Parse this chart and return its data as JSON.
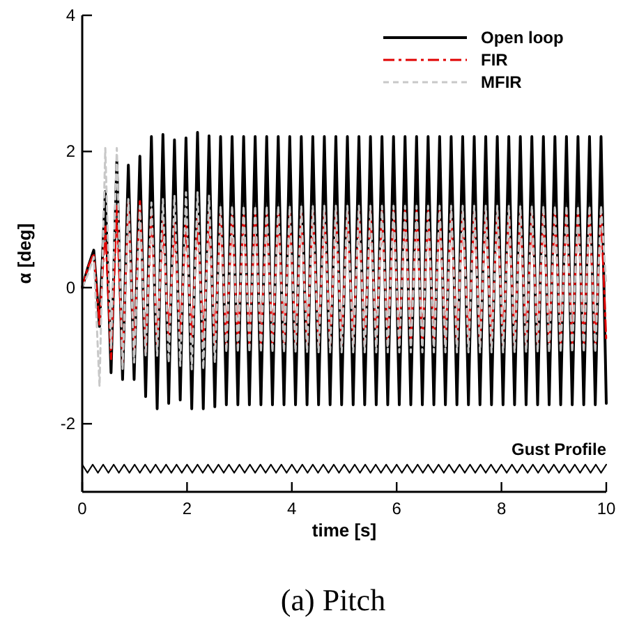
{
  "chart_data": {
    "type": "line",
    "title": "(a) Pitch",
    "xlabel": "time [s]",
    "ylabel": "α [deg]",
    "xlim": [
      0,
      10
    ],
    "ylim": [
      -3,
      4
    ],
    "xticks": [
      0,
      2,
      4,
      6,
      8,
      10
    ],
    "yticks": [
      -2,
      0,
      2,
      4
    ],
    "legend": "top right",
    "annotations": [
      "Gust Profile"
    ],
    "x": [
      0,
      0.11,
      0.22,
      0.33,
      0.44,
      0.55,
      0.66,
      0.77,
      0.88,
      0.99,
      1.1,
      1.21,
      1.32,
      1.43,
      1.54,
      1.65,
      1.76,
      1.87,
      1.98,
      2.09,
      2.2,
      2.31,
      2.42,
      2.53,
      2.64,
      2.75,
      2.86,
      2.97,
      3.08,
      3.19,
      3.3,
      3.41,
      3.52,
      3.63,
      3.74,
      3.85,
      3.96,
      4.07,
      4.18,
      4.29,
      4.4,
      4.51,
      4.62,
      4.73,
      4.84,
      4.95,
      5.06,
      5.17,
      5.28,
      5.39,
      5.5,
      5.61,
      5.72,
      5.83,
      5.94,
      6.05,
      6.16,
      6.27,
      6.38,
      6.49,
      6.6,
      6.71,
      6.82,
      6.93,
      7.04,
      7.15,
      7.26,
      7.37,
      7.48,
      7.59,
      7.7,
      7.81,
      7.92,
      8.03,
      8.14,
      8.25,
      8.36,
      8.47,
      8.58,
      8.69,
      8.8,
      8.91,
      9.02,
      9.13,
      9.24,
      9.35,
      9.46,
      9.57,
      9.68,
      9.79,
      9.9,
      10
    ],
    "series": [
      {
        "name": "Open loop",
        "color": "#000000",
        "line_style": "solid",
        "values": [
          0,
          0.3,
          0.55,
          -0.57,
          1.41,
          -1.25,
          1.85,
          -1.35,
          1.8,
          -1.35,
          1.93,
          -1.6,
          2.22,
          -1.78,
          2.25,
          -1.7,
          2.17,
          -1.65,
          2.2,
          -1.78,
          2.28,
          -1.78,
          2.23,
          -1.75,
          2.22,
          -1.72,
          2.22,
          -1.72,
          2.22,
          -1.72,
          2.22,
          -1.72,
          2.22,
          -1.72,
          2.22,
          -1.72,
          2.22,
          -1.72,
          2.22,
          -1.72,
          2.22,
          -1.72,
          2.22,
          -1.72,
          2.22,
          -1.72,
          2.22,
          -1.72,
          2.22,
          -1.72,
          2.22,
          -1.72,
          2.22,
          -1.72,
          2.22,
          -1.72,
          2.22,
          -1.72,
          2.22,
          -1.72,
          2.22,
          -1.72,
          2.22,
          -1.72,
          2.22,
          -1.72,
          2.22,
          -1.72,
          2.22,
          -1.72,
          2.22,
          -1.72,
          2.22,
          -1.72,
          2.22,
          -1.72,
          2.22,
          -1.72,
          2.22,
          -1.72,
          2.22,
          -1.72,
          2.22,
          -1.72,
          2.22,
          -1.72,
          2.22,
          -1.72,
          2.22,
          -1.72,
          2.22,
          -1.7
        ]
      },
      {
        "name": "FIR",
        "color": "#e00000",
        "line_style": "dashdot",
        "values": [
          0,
          0.3,
          0.5,
          -0.55,
          0.9,
          -1.05,
          1.2,
          -1.1,
          1.25,
          -0.95,
          1.3,
          -0.95,
          1.15,
          -0.85,
          1.0,
          -0.75,
          0.95,
          -0.75,
          1.0,
          -0.8,
          1.05,
          -0.8,
          1.1,
          -0.85,
          1.13,
          -0.84,
          1.13,
          -0.84,
          1.13,
          -0.84,
          1.13,
          -0.84,
          1.13,
          -0.84,
          1.13,
          -0.84,
          1.13,
          -0.84,
          1.13,
          -0.84,
          1.13,
          -0.84,
          1.13,
          -0.84,
          1.13,
          -0.84,
          1.13,
          -0.84,
          1.13,
          -0.84,
          1.13,
          -0.84,
          1.13,
          -0.84,
          1.13,
          -0.84,
          1.13,
          -0.84,
          1.13,
          -0.84,
          1.13,
          -0.84,
          1.13,
          -0.84,
          1.13,
          -0.84,
          1.13,
          -0.84,
          1.13,
          -0.84,
          1.13,
          -0.84,
          1.13,
          -0.84,
          1.13,
          -0.84,
          1.13,
          -0.84,
          1.13,
          -0.84,
          1.13,
          -0.84,
          1.13,
          -0.84,
          1.13,
          -0.84,
          1.13,
          -0.84,
          1.13,
          -0.84,
          1.13,
          -0.8
        ]
      },
      {
        "name": "MFIR",
        "color": "#c8c8c8",
        "line_style": "dashed",
        "values": [
          0,
          0.2,
          0.45,
          -1.45,
          2.05,
          -0.9,
          2.05,
          -1.2,
          1.3,
          -1.1,
          1.2,
          -1.0,
          1.25,
          -1.0,
          1.3,
          -1.1,
          1.35,
          -1.15,
          1.4,
          -1.2,
          1.4,
          -1.2,
          1.35,
          -1.1,
          1.2,
          -0.95,
          1.2,
          -0.95,
          1.2,
          -0.95,
          1.2,
          -0.95,
          1.2,
          -0.95,
          1.2,
          -0.95,
          1.2,
          -0.95,
          1.2,
          -0.95,
          1.2,
          -0.95,
          1.2,
          -0.95,
          1.2,
          -0.95,
          1.2,
          -0.95,
          1.2,
          -0.95,
          1.2,
          -0.95,
          1.2,
          -0.95,
          1.2,
          -0.95,
          1.2,
          -0.95,
          1.2,
          -0.95,
          1.2,
          -0.95,
          1.2,
          -0.95,
          1.2,
          -0.95,
          1.2,
          -0.95,
          1.2,
          -0.95,
          1.2,
          -0.95,
          1.2,
          -0.95,
          1.2,
          -0.95,
          1.2,
          -0.95,
          1.2,
          -0.95,
          1.2,
          -0.95,
          1.2,
          -0.95,
          1.2,
          -0.95,
          1.2,
          -0.95,
          1.2,
          -0.95,
          1.2,
          0.05
        ]
      },
      {
        "color": "#000000",
        "line_style": "solid",
        "x": [
          0,
          0.1,
          0.2,
          0.3,
          0.4,
          0.5,
          0.6,
          0.7,
          0.8,
          0.9,
          1,
          1.1,
          1.2,
          1.3,
          1.4,
          1.5,
          1.6,
          1.7,
          1.8,
          1.9,
          2,
          2.1,
          2.2,
          2.3,
          2.4,
          2.5,
          2.6,
          2.7,
          2.8,
          2.9,
          3,
          3.1,
          3.2,
          3.3,
          3.4,
          3.5,
          3.6,
          3.7,
          3.8,
          3.9,
          4,
          4.1,
          4.2,
          4.3,
          4.4,
          4.5,
          4.6,
          4.7,
          4.8,
          4.9,
          5,
          5.1,
          5.2,
          5.3,
          5.4,
          5.5,
          5.6,
          5.7,
          5.8,
          5.9,
          6,
          6.1,
          6.2,
          6.3,
          6.4,
          6.5,
          6.6,
          6.7,
          6.8,
          6.9,
          7,
          7.1,
          7.2,
          7.3,
          7.4,
          7.5,
          7.6,
          7.7,
          7.8,
          7.9,
          8,
          8.1,
          8.2,
          8.3,
          8.4,
          8.5,
          8.6,
          8.7,
          8.8,
          8.9,
          9,
          9.1,
          9.2,
          9.3,
          9.4,
          9.5,
          9.6,
          9.7,
          9.8,
          9.9,
          10
        ],
        "values": [
          -2.6,
          -2.72,
          -2.6,
          -2.72,
          -2.6,
          -2.72,
          -2.6,
          -2.72,
          -2.6,
          -2.72,
          -2.6,
          -2.72,
          -2.6,
          -2.72,
          -2.6,
          -2.72,
          -2.6,
          -2.72,
          -2.6,
          -2.72,
          -2.6,
          -2.72,
          -2.6,
          -2.72,
          -2.6,
          -2.72,
          -2.6,
          -2.72,
          -2.6,
          -2.72,
          -2.6,
          -2.72,
          -2.6,
          -2.72,
          -2.6,
          -2.72,
          -2.6,
          -2.72,
          -2.6,
          -2.72,
          -2.6,
          -2.72,
          -2.6,
          -2.72,
          -2.6,
          -2.72,
          -2.6,
          -2.72,
          -2.6,
          -2.72,
          -2.6,
          -2.72,
          -2.6,
          -2.72,
          -2.6,
          -2.72,
          -2.6,
          -2.72,
          -2.6,
          -2.72,
          -2.6,
          -2.72,
          -2.6,
          -2.72,
          -2.6,
          -2.72,
          -2.6,
          -2.72,
          -2.6,
          -2.72,
          -2.6,
          -2.72,
          -2.6,
          -2.72,
          -2.6,
          -2.72,
          -2.6,
          -2.72,
          -2.6,
          -2.72,
          -2.6,
          -2.72,
          -2.6,
          -2.72,
          -2.6,
          -2.72,
          -2.6,
          -2.72,
          -2.6,
          -2.72,
          -2.6,
          -2.72,
          -2.6,
          -2.72,
          -2.6,
          -2.72,
          -2.6,
          -2.72,
          -2.6,
          -2.72,
          -2.6
        ]
      }
    ]
  }
}
